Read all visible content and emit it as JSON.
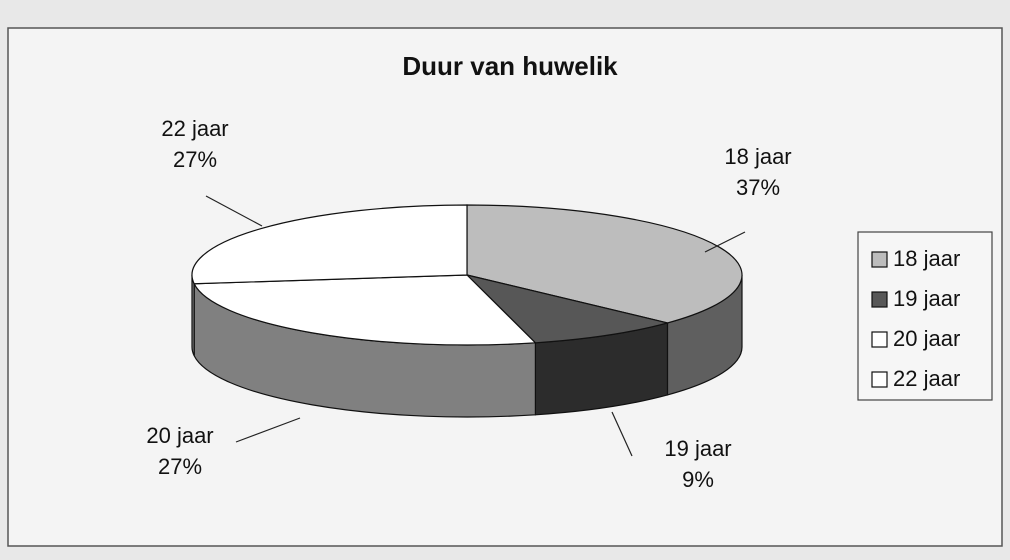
{
  "chart_data": {
    "type": "pie",
    "title": "Duur van huwelik",
    "categories": [
      "18 jaar",
      "19 jaar",
      "20 jaar",
      "22 jaar"
    ],
    "values": [
      37,
      9,
      27,
      27
    ],
    "value_labels": [
      "37%",
      "9%",
      "27%",
      "27%"
    ],
    "colors": [
      "#bdbdbd",
      "#575757",
      "#ffffff",
      "#ffffff"
    ],
    "legend": "right"
  }
}
